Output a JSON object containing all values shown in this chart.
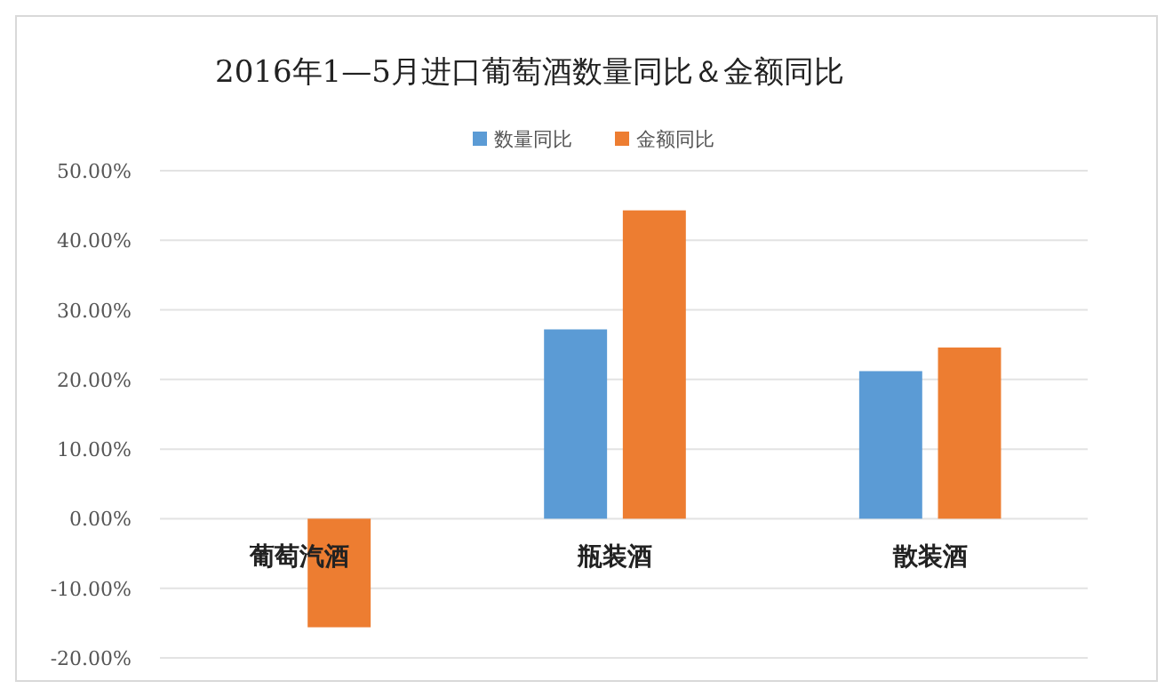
{
  "chart_data": {
    "type": "bar",
    "title": "2016年1—5月进口葡萄酒数量同比＆金额同比",
    "categories": [
      "葡萄汽酒",
      "瓶装酒",
      "散装酒"
    ],
    "series": [
      {
        "name": "数量同比",
        "color": "#5b9bd5",
        "values": [
          null,
          27.2,
          21.2
        ]
      },
      {
        "name": "金额同比",
        "color": "#ed7d31",
        "values": [
          -15.6,
          44.3,
          24.6
        ]
      }
    ],
    "ylim": [
      -20,
      50
    ],
    "yticks": [
      {
        "value": -20,
        "label": "-20.00%"
      },
      {
        "value": -10,
        "label": "-10.00%"
      },
      {
        "value": 0,
        "label": "0.00%"
      },
      {
        "value": 10,
        "label": "10.00%"
      },
      {
        "value": 20,
        "label": "20.00%"
      },
      {
        "value": 30,
        "label": "30.00%"
      },
      {
        "value": 40,
        "label": "40.00%"
      },
      {
        "value": 50,
        "label": "50.00%"
      }
    ],
    "grid": "y",
    "legend": "top"
  }
}
